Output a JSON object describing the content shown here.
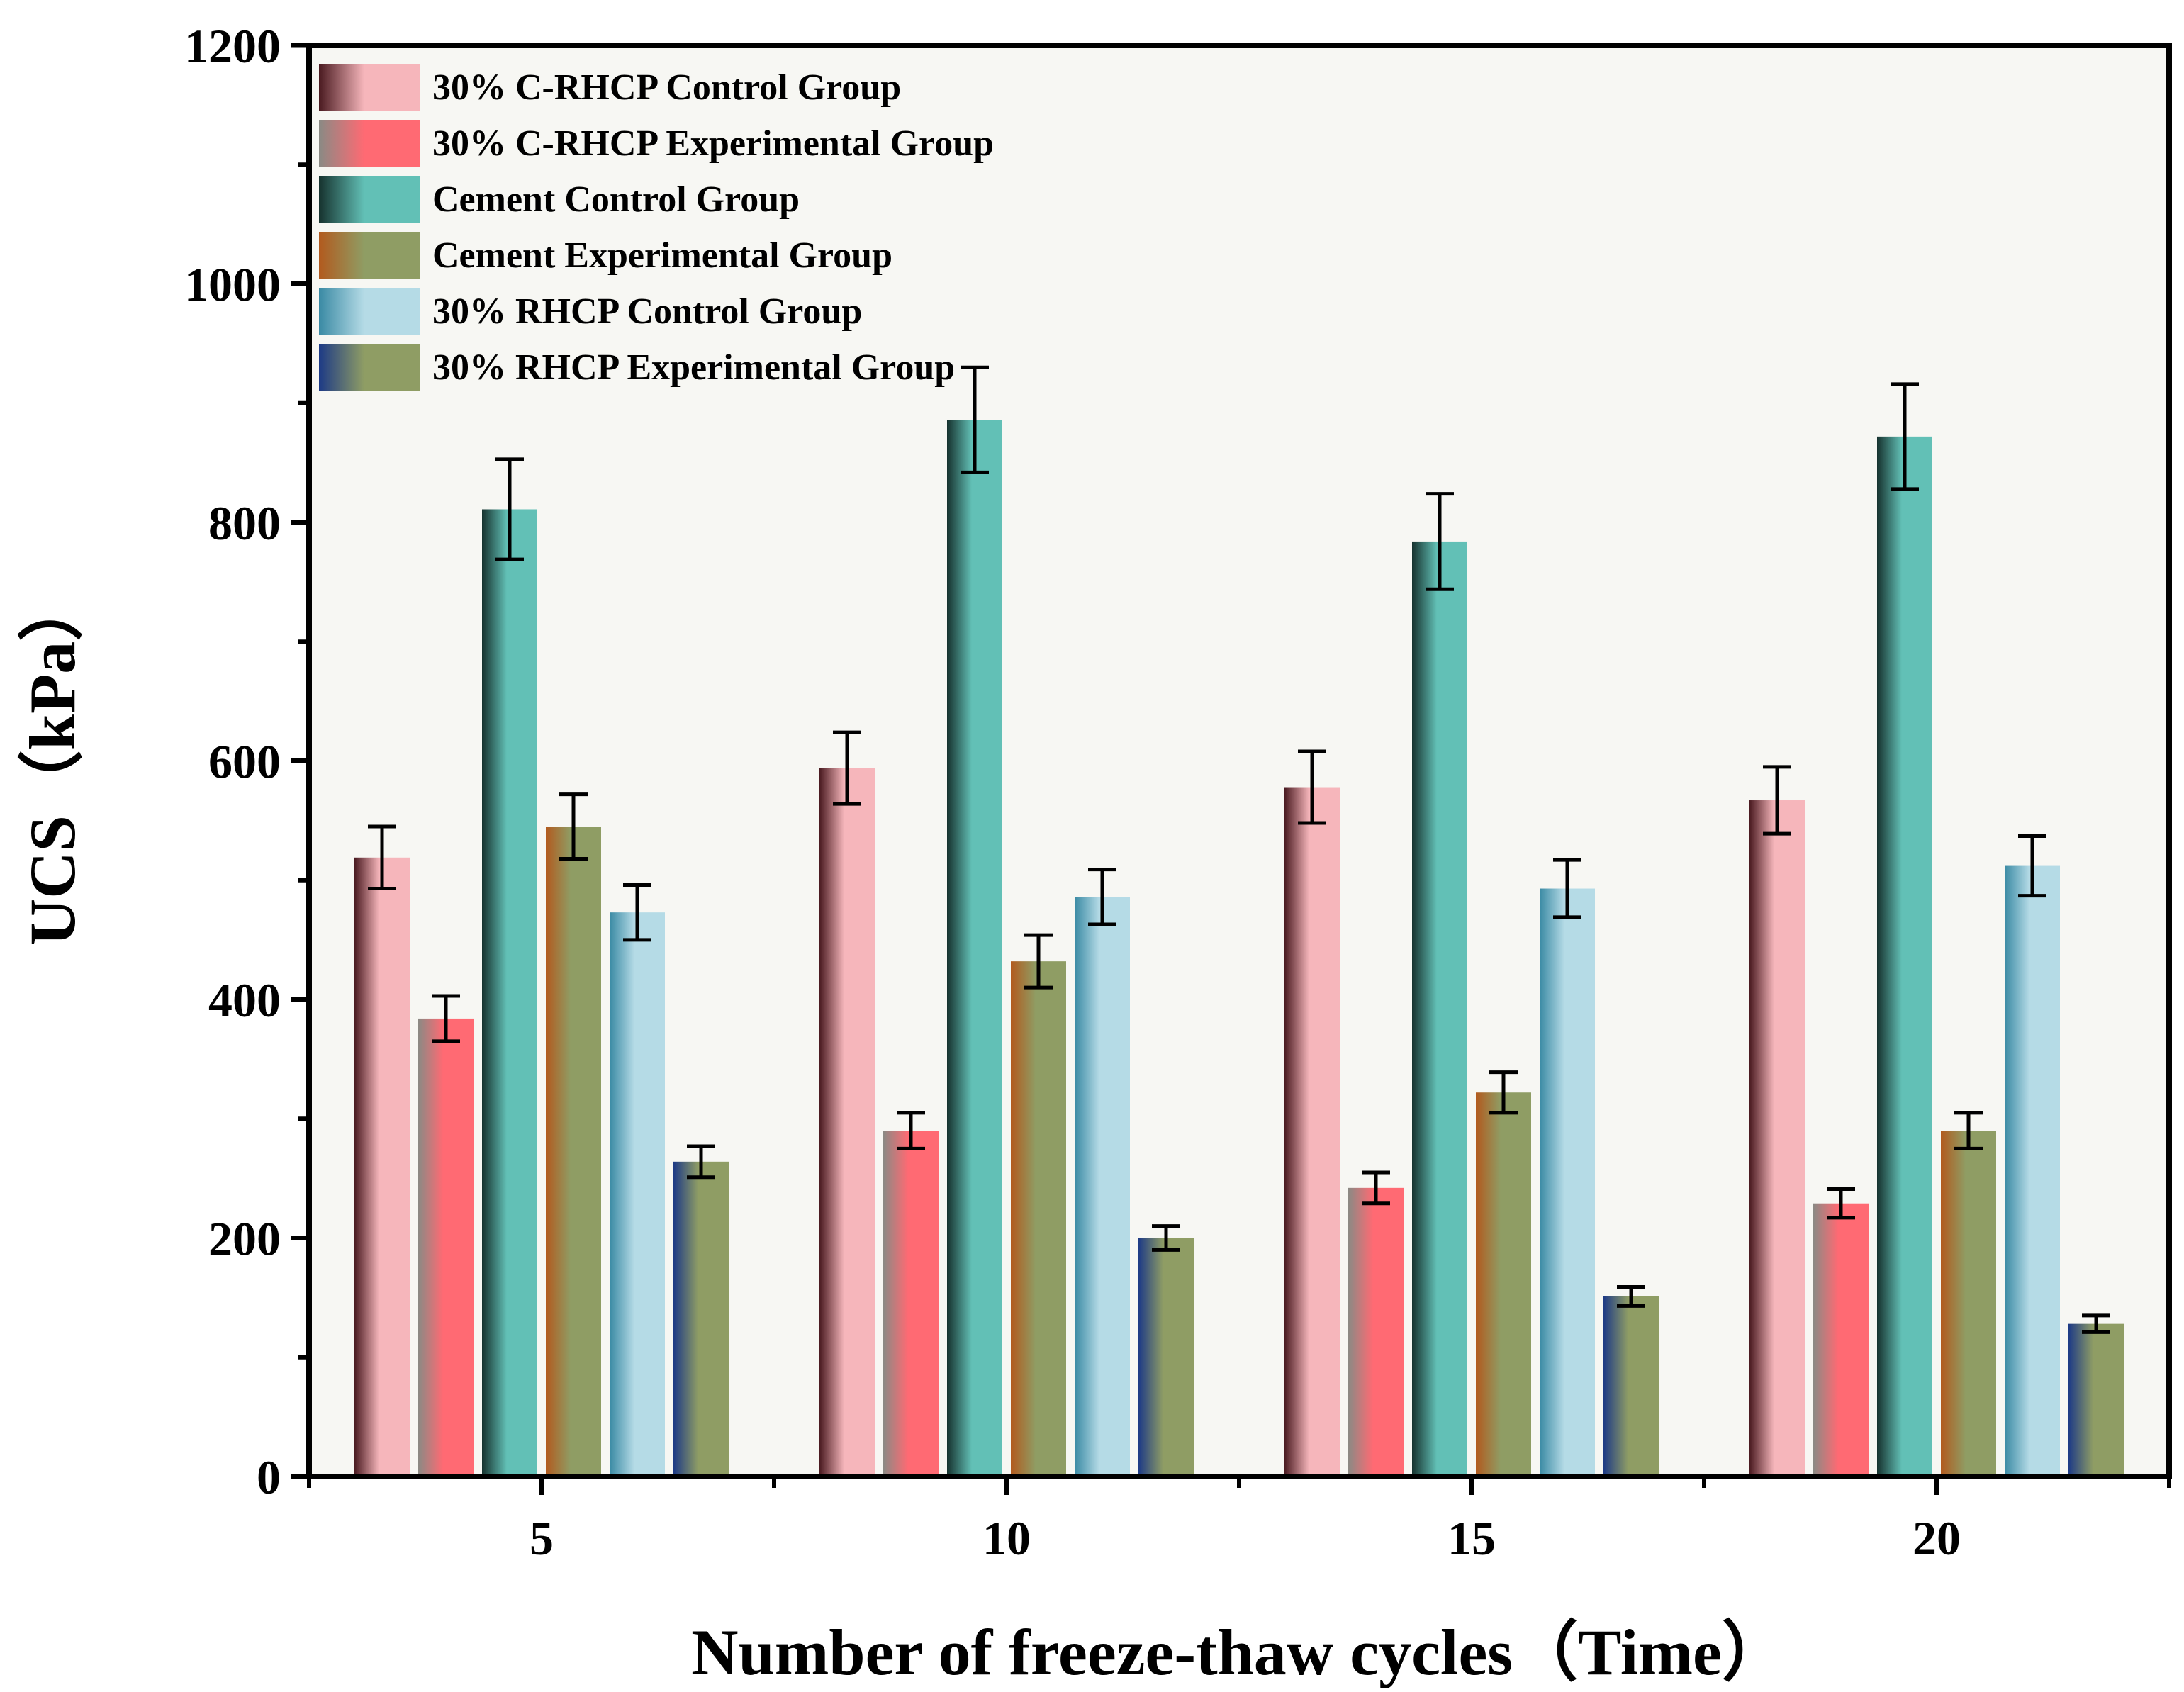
{
  "chart_data": {
    "type": "bar",
    "xlabel": "Number of freeze-thaw cycles（Time）",
    "ylabel": "UCS（kPa）",
    "categories": [
      "5",
      "10",
      "15",
      "20"
    ],
    "ylim": [
      0,
      1200
    ],
    "yticks": [
      "0",
      "200",
      "400",
      "600",
      "800",
      "1000",
      "1200"
    ],
    "legend_position": "top-left",
    "grid": false,
    "background_color": "#f7f7f3",
    "series": [
      {
        "name": "30% C-RHCP Control Group",
        "values": [
          519,
          594,
          578,
          567
        ],
        "errors": [
          26,
          30,
          30,
          28
        ],
        "color_light": "#f6b6bb",
        "color_dark": "#4a1a20"
      },
      {
        "name": "30% C-RHCP Experimental Group",
        "values": [
          384,
          290,
          242,
          229
        ],
        "errors": [
          19,
          15,
          13,
          12
        ],
        "color_light": "#ff6a73",
        "color_dark": "#8a8a84"
      },
      {
        "name": "Cement Control Group",
        "values": [
          811,
          886,
          784,
          872
        ],
        "errors": [
          42,
          44,
          40,
          44
        ],
        "color_light": "#62c0b6",
        "color_dark": "#16322e"
      },
      {
        "name": "Cement Experimental Group",
        "values": [
          545,
          432,
          322,
          290
        ],
        "errors": [
          27,
          22,
          17,
          15
        ],
        "color_light": "#8f9d64",
        "color_dark": "#b25a1e"
      },
      {
        "name": "30% RHCP Control Group",
        "values": [
          473,
          486,
          493,
          512
        ],
        "errors": [
          23,
          23,
          24,
          25
        ],
        "color_light": "#b5dbe6",
        "color_dark": "#3a8aa4"
      },
      {
        "name": "30% RHCP Experimental Group",
        "values": [
          264,
          200,
          151,
          128
        ],
        "errors": [
          13,
          10,
          8,
          7
        ],
        "color_light": "#8f9d64",
        "color_dark": "#1d3a86"
      }
    ]
  }
}
